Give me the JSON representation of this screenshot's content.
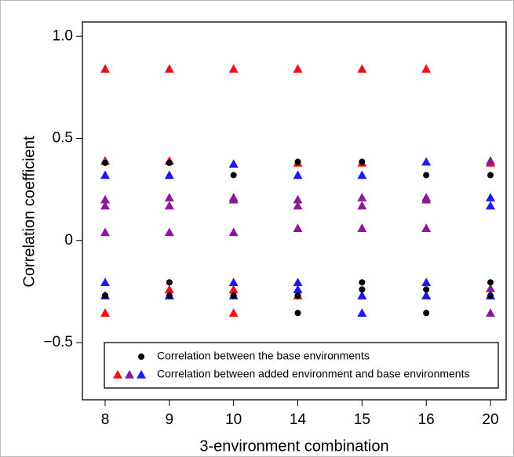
{
  "chart_data": {
    "type": "scatter",
    "x_label": "3-environment combination",
    "y_label": "Correlation coefficient",
    "categories": [
      "8",
      "9",
      "10",
      "14",
      "15",
      "16",
      "20"
    ],
    "ylim": [
      -0.78,
      1.07
    ],
    "yticks": [
      {
        "value": -0.5,
        "label": "−0.5"
      },
      0,
      0.5,
      {
        "value": 1,
        "label": "1.0"
      }
    ],
    "series": [
      {
        "color": "#000000",
        "marker": "circle",
        "values": [
          0.38,
          0.38,
          0.32,
          0.385,
          0.385,
          0.32,
          0.32
        ]
      },
      {
        "color": "#000000",
        "marker": "circle",
        "values": [
          -0.27,
          -0.205,
          -0.27,
          -0.27,
          -0.205,
          -0.24,
          -0.205
        ]
      },
      {
        "color": "#000000",
        "marker": "circle",
        "values": [
          -0.27,
          -0.27,
          -0.27,
          -0.355,
          -0.24,
          -0.355,
          -0.27
        ]
      },
      {
        "color": "#ee1111",
        "marker": "triangle",
        "values": [
          0.84,
          0.84,
          0.84,
          0.84,
          0.84,
          0.84,
          0.38
        ]
      },
      {
        "color": "#ee1111",
        "marker": "triangle",
        "values": [
          0.39,
          0.39,
          -0.24,
          0.38,
          0.38,
          -0.27,
          -0.27
        ]
      },
      {
        "color": "#ee1111",
        "marker": "triangle",
        "values": [
          -0.355,
          -0.24,
          -0.355,
          -0.27,
          -0.27,
          -0.27,
          -0.27
        ]
      },
      {
        "color": "#8b1a9b",
        "marker": "triangle",
        "values": [
          0.2,
          0.21,
          0.21,
          0.2,
          0.21,
          0.21,
          0.39
        ]
      },
      {
        "color": "#8b1a9b",
        "marker": "triangle",
        "values": [
          0.17,
          0.17,
          0.2,
          0.17,
          0.17,
          0.2,
          -0.235
        ]
      },
      {
        "color": "#8b1a9b",
        "marker": "triangle",
        "values": [
          0.04,
          0.04,
          0.04,
          0.06,
          0.06,
          0.06,
          -0.355
        ]
      },
      {
        "color": "#1a1aee",
        "marker": "triangle",
        "values": [
          0.32,
          0.32,
          0.375,
          0.32,
          0.32,
          0.385,
          0.21
        ]
      },
      {
        "color": "#1a1aee",
        "marker": "triangle",
        "values": [
          -0.205,
          -0.27,
          -0.205,
          -0.205,
          -0.27,
          -0.205,
          0.17
        ]
      },
      {
        "color": "#1a1aee",
        "marker": "triangle",
        "values": [
          -0.27,
          -0.27,
          -0.27,
          -0.24,
          -0.355,
          -0.27,
          -0.27
        ]
      }
    ],
    "legend": [
      {
        "label": "Correlation between the base environments",
        "markers": [
          {
            "color": "#000000",
            "shape": "circle"
          }
        ]
      },
      {
        "label": "Correlation between added environment and base environments",
        "markers": [
          {
            "color": "#ee1111",
            "shape": "triangle"
          },
          {
            "color": "#8b1a9b",
            "shape": "triangle"
          },
          {
            "color": "#1a1aee",
            "shape": "triangle"
          }
        ]
      }
    ]
  }
}
